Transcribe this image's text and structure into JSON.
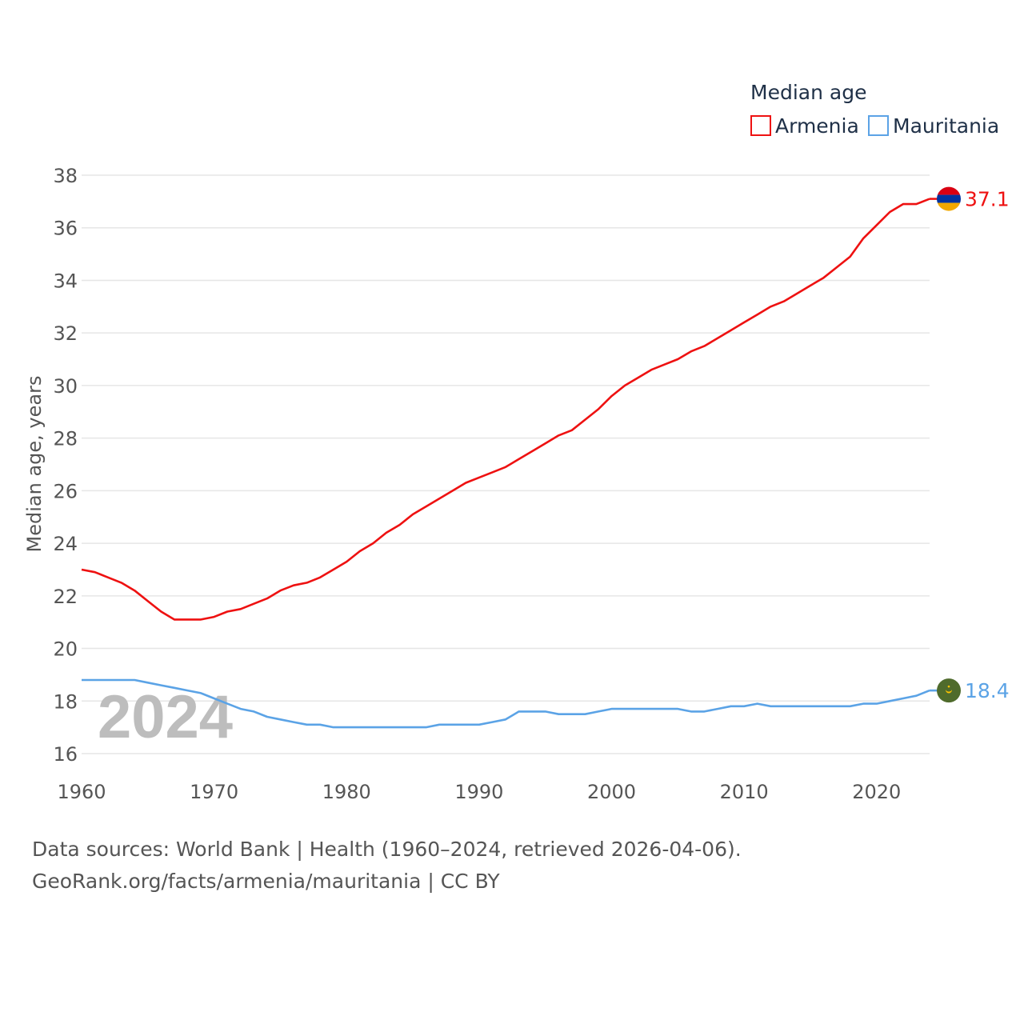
{
  "chart_data": {
    "type": "line",
    "legend_title": "Median age",
    "ylabel": "Median age, years",
    "xlabel": "",
    "xlim": [
      1960,
      2024
    ],
    "ylim": [
      16,
      38
    ],
    "xticks": [
      1960,
      1970,
      1980,
      1990,
      2000,
      2010,
      2020
    ],
    "yticks": [
      16,
      18,
      20,
      22,
      24,
      26,
      28,
      30,
      32,
      34,
      36,
      38
    ],
    "grid": true,
    "year_watermark": "2024",
    "x": [
      1960,
      1961,
      1962,
      1963,
      1964,
      1965,
      1966,
      1967,
      1968,
      1969,
      1970,
      1971,
      1972,
      1973,
      1974,
      1975,
      1976,
      1977,
      1978,
      1979,
      1980,
      1981,
      1982,
      1983,
      1984,
      1985,
      1986,
      1987,
      1988,
      1989,
      1990,
      1991,
      1992,
      1993,
      1994,
      1995,
      1996,
      1997,
      1998,
      1999,
      2000,
      2001,
      2002,
      2003,
      2004,
      2005,
      2006,
      2007,
      2008,
      2009,
      2010,
      2011,
      2012,
      2013,
      2014,
      2015,
      2016,
      2017,
      2018,
      2019,
      2020,
      2021,
      2022,
      2023,
      2024
    ],
    "series": [
      {
        "name": "Armenia",
        "color": "#ee1111",
        "end_label": "37.1",
        "values": [
          23.0,
          22.9,
          22.7,
          22.5,
          22.2,
          21.8,
          21.4,
          21.1,
          21.1,
          21.1,
          21.2,
          21.4,
          21.5,
          21.7,
          21.9,
          22.2,
          22.4,
          22.5,
          22.7,
          23.0,
          23.3,
          23.7,
          24.0,
          24.4,
          24.7,
          25.1,
          25.4,
          25.7,
          26.0,
          26.3,
          26.5,
          26.7,
          26.9,
          27.2,
          27.5,
          27.8,
          28.1,
          28.3,
          28.7,
          29.1,
          29.6,
          30.0,
          30.3,
          30.6,
          30.8,
          31.0,
          31.3,
          31.5,
          31.8,
          32.1,
          32.4,
          32.7,
          33.0,
          33.2,
          33.5,
          33.8,
          34.1,
          34.5,
          34.9,
          35.6,
          36.1,
          36.6,
          36.9,
          36.9,
          37.1
        ]
      },
      {
        "name": "Mauritania",
        "color": "#5ba3e6",
        "end_label": "18.4",
        "values": [
          18.8,
          18.8,
          18.8,
          18.8,
          18.8,
          18.7,
          18.6,
          18.5,
          18.4,
          18.3,
          18.1,
          17.9,
          17.7,
          17.6,
          17.4,
          17.3,
          17.2,
          17.1,
          17.1,
          17.0,
          17.0,
          17.0,
          17.0,
          17.0,
          17.0,
          17.0,
          17.0,
          17.1,
          17.1,
          17.1,
          17.1,
          17.2,
          17.3,
          17.6,
          17.6,
          17.6,
          17.5,
          17.5,
          17.5,
          17.6,
          17.7,
          17.7,
          17.7,
          17.7,
          17.7,
          17.7,
          17.6,
          17.6,
          17.7,
          17.8,
          17.8,
          17.9,
          17.8,
          17.8,
          17.8,
          17.8,
          17.8,
          17.8,
          17.8,
          17.9,
          17.9,
          18.0,
          18.1,
          18.2,
          18.4
        ]
      }
    ]
  },
  "footer": {
    "line1": "Data sources: World Bank | Health (1960–2024, retrieved 2026-04-06).",
    "line2": "GeoRank.org/facts/armenia/mauritania | CC BY"
  },
  "flags": {
    "armenia_colors": [
      "#d90012",
      "#0033a0",
      "#f2a800"
    ],
    "mauritania_colors": [
      "#006233",
      "#ffc400",
      "#d01c1f"
    ]
  }
}
